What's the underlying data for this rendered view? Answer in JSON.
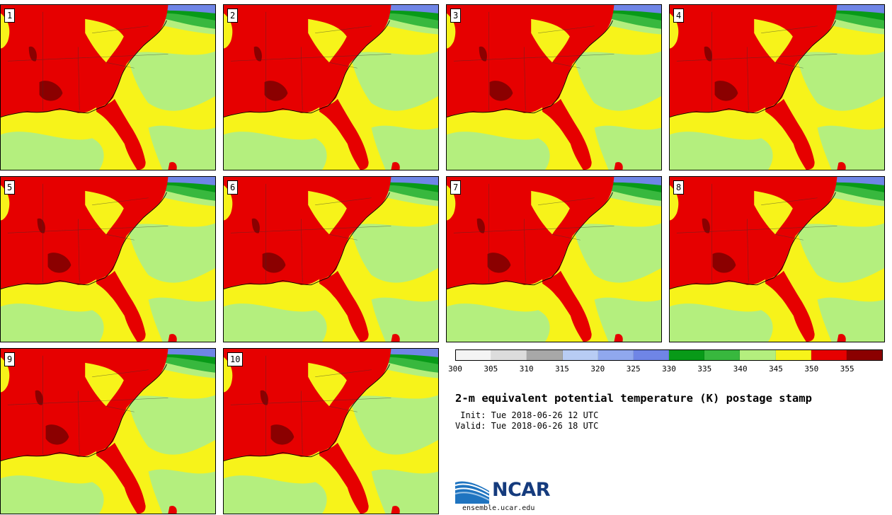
{
  "stamps": [
    {
      "label": "1"
    },
    {
      "label": "2"
    },
    {
      "label": "3"
    },
    {
      "label": "4"
    },
    {
      "label": "5"
    },
    {
      "label": "6"
    },
    {
      "label": "7"
    },
    {
      "label": "8"
    },
    {
      "label": "9"
    },
    {
      "label": "10"
    }
  ],
  "colorbar": {
    "ticks": [
      "300",
      "305",
      "310",
      "315",
      "320",
      "325",
      "330",
      "335",
      "340",
      "345",
      "350",
      "355"
    ],
    "colors": [
      "#f4f4f4",
      "#dcdcdc",
      "#a8a8a8",
      "#b8ccf4",
      "#90a8ee",
      "#6f85e6",
      "#089a18",
      "#38b83e",
      "#b4ef7e",
      "#f7f31a",
      "#e60000",
      "#8b0000"
    ]
  },
  "title": "2-m equivalent potential temperature (K) postage stamp",
  "init_line": " Init: Tue 2018-06-26 12 UTC",
  "valid_line": "Valid: Tue 2018-06-26 18 UTC",
  "logo": {
    "text": "NCAR",
    "url": "ensemble.ucar.edu"
  }
}
